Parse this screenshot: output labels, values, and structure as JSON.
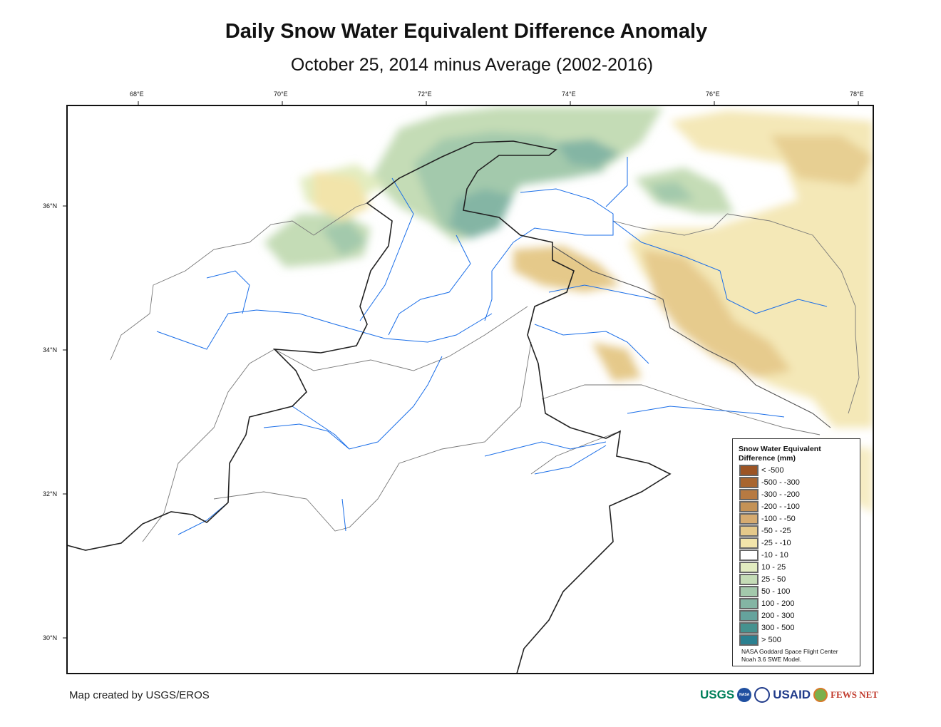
{
  "title": "Daily Snow Water Equivalent Difference Anomaly",
  "subtitle": "October 25, 2014 minus Average (2002-2016)",
  "lon_ticks": [
    "68°E",
    "70°E",
    "72°E",
    "74°E",
    "76°E",
    "78°E"
  ],
  "lat_ticks": [
    "36°N",
    "34°N",
    "32°N",
    "30°N"
  ],
  "legend": {
    "title_line1": "Snow Water Equivalent",
    "title_line2": "Difference (mm)",
    "items": [
      {
        "label": "< -500",
        "color": "#9c5424"
      },
      {
        "label": "-500 - -300",
        "color": "#a8652f"
      },
      {
        "label": "-300 - -200",
        "color": "#b77a42"
      },
      {
        "label": "-200 - -100",
        "color": "#c49256"
      },
      {
        "label": "-100 - -50",
        "color": "#d6ab70"
      },
      {
        "label": "-50 - -25",
        "color": "#e5c98a"
      },
      {
        "label": "-25 - -10",
        "color": "#f2e4aa"
      },
      {
        "label": "-10 - 10",
        "color": "#ffffff"
      },
      {
        "label": "10 - 25",
        "color": "#e2ecc0"
      },
      {
        "label": "25 - 50",
        "color": "#c4dcb6"
      },
      {
        "label": "50 - 100",
        "color": "#a3c9ac"
      },
      {
        "label": "100 - 200",
        "color": "#84b5a4"
      },
      {
        "label": "200 - 300",
        "color": "#65a39d"
      },
      {
        "label": "300 - 500",
        "color": "#46928f"
      },
      {
        "label": "> 500",
        "color": "#2b8090"
      }
    ],
    "credit_line1": "NASA Goddard Space Flight Center",
    "credit_line2": "Noah 3.6 SWE Model."
  },
  "footer": "Map created by USGS/EROS",
  "logos": {
    "usgs": "USGS",
    "nasa": "NASA",
    "usaid": "USAID",
    "fewsnet": "FEWS NET"
  }
}
